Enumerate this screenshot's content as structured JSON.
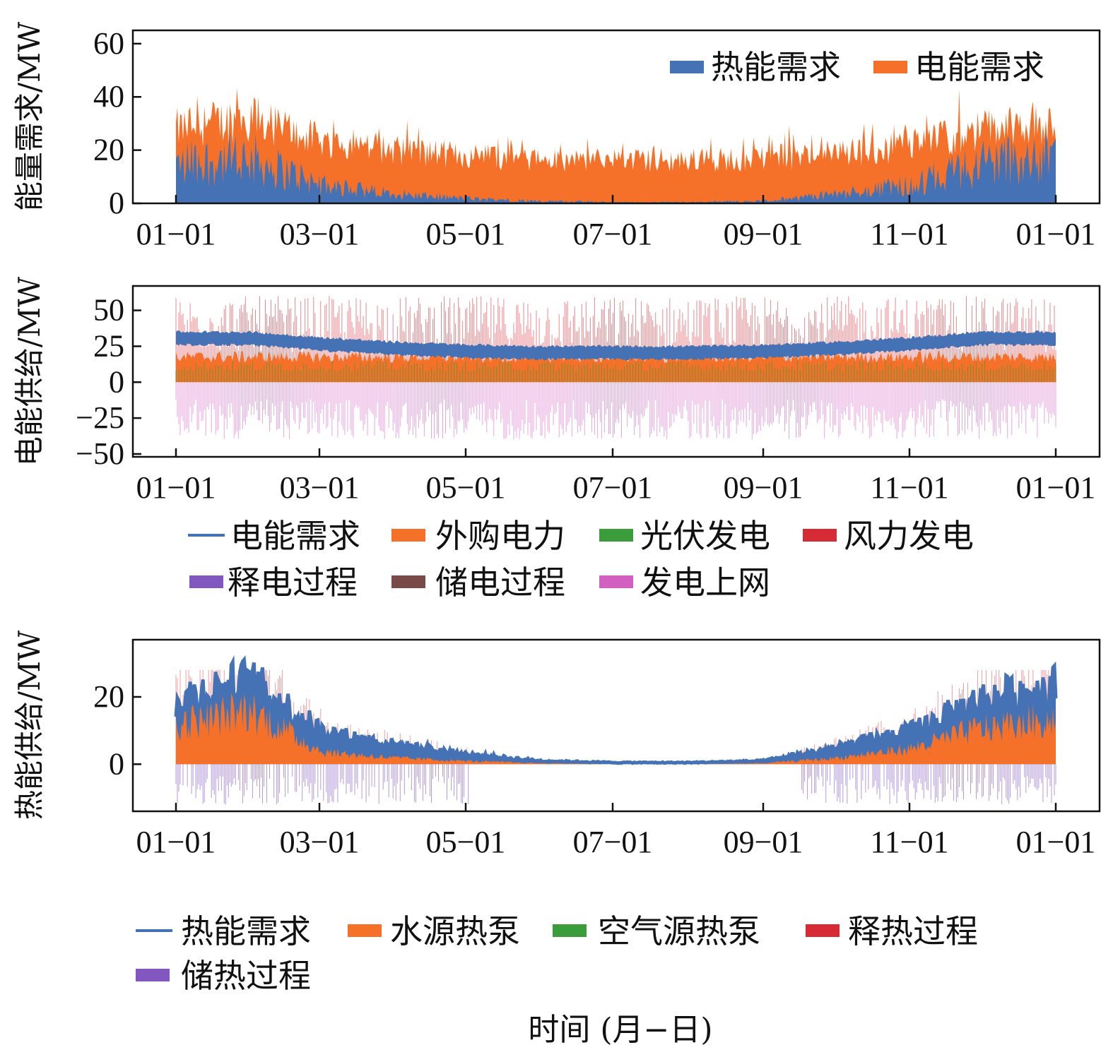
{
  "chart_data": [
    {
      "type": "area",
      "ylabel": "能量需求/MW",
      "ylim": [
        0,
        65
      ],
      "y_ticks": [
        0,
        20,
        40,
        60
      ],
      "x_ticks": [
        "01−01",
        "03−01",
        "05−01",
        "07−01",
        "09−01",
        "11−01",
        "01−01"
      ],
      "legend_placement": "top-right",
      "series": [
        {
          "name": "热能需求",
          "color": "#4472b4",
          "monthly_typical": [
            17,
            20,
            8,
            4,
            2,
            1,
            0.5,
            0.5,
            1,
            4,
            8,
            18,
            22
          ]
        },
        {
          "name": "电能需求",
          "color": "#f5712a",
          "monthly_typical_total": [
            36,
            42,
            30,
            26,
            23,
            21,
            21,
            21,
            22,
            24,
            28,
            36,
            40
          ]
        }
      ]
    },
    {
      "type": "area",
      "ylabel": "电能供给/MW",
      "ylim": [
        -52,
        67
      ],
      "y_ticks": [
        -50,
        -25,
        0,
        25,
        50
      ],
      "x_ticks": [
        "01−01",
        "03−01",
        "05−01",
        "07−01",
        "09−01",
        "11−01",
        "01−01"
      ],
      "legend_placement": "below",
      "series": [
        {
          "name": "电能需求",
          "color": "#4472b4",
          "style": "line",
          "monthly_typical": [
            31,
            31,
            27,
            24,
            22,
            21,
            21,
            21,
            22,
            24,
            27,
            31,
            31
          ]
        },
        {
          "name": "外购电力",
          "color": "#f5712a",
          "typical_max": 22
        },
        {
          "name": "光伏发电",
          "color": "#3a9d3a",
          "typical_max": 15
        },
        {
          "name": "风力发电",
          "color": "#d62a35",
          "typical_max": 60
        },
        {
          "name": "释电过程",
          "color": "#8258c0"
        },
        {
          "name": "储电过程",
          "color": "#7a4a48"
        },
        {
          "name": "发电上网",
          "color": "#d35fc2",
          "typical_min": -40
        }
      ]
    },
    {
      "type": "area",
      "ylabel": "热能供给/MW",
      "ylim": [
        -14,
        37
      ],
      "y_ticks": [
        0,
        20
      ],
      "x_ticks": [
        "01−01",
        "03−01",
        "05−01",
        "07−01",
        "09−01",
        "11−01",
        "01−01"
      ],
      "xlabel": "时间 (月−日)",
      "legend_placement": "below",
      "series": [
        {
          "name": "热能需求",
          "color": "#4472b4",
          "style": "line",
          "monthly_typical": [
            20,
            26,
            10,
            6,
            3,
            1,
            0.5,
            0.5,
            1,
            5,
            10,
            20,
            24
          ]
        },
        {
          "name": "水源热泵",
          "color": "#f5712a",
          "monthly_typical": [
            13,
            18,
            4,
            2,
            1,
            0.3,
            0,
            0,
            0.3,
            2,
            5,
            12,
            15
          ]
        },
        {
          "name": "空气源热泵",
          "color": "#3a9d3a"
        },
        {
          "name": "释热过程",
          "color": "#d62a35",
          "typical_max": 28
        },
        {
          "name": "储热过程",
          "color": "#8258c0",
          "typical_min": -12
        }
      ]
    }
  ]
}
